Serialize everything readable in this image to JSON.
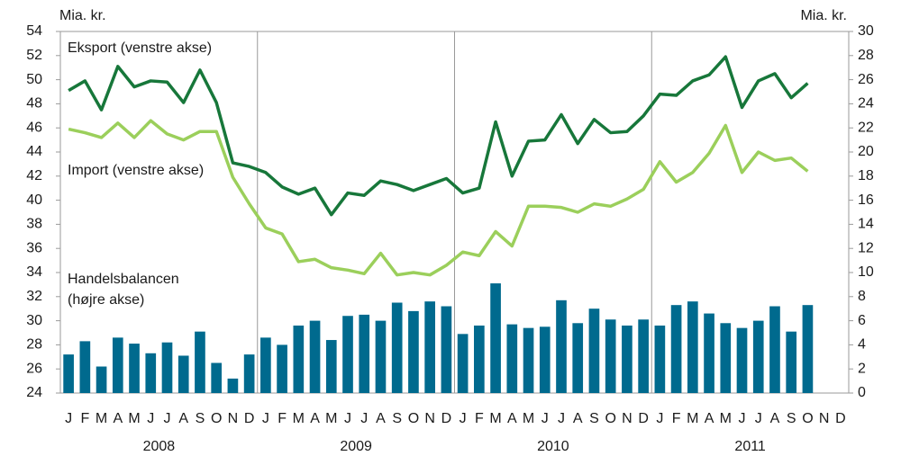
{
  "chart_data": {
    "type": "line",
    "y_label": "Mia. kr.",
    "y2_label": "Mia. kr.",
    "categories": [
      "J",
      "F",
      "M",
      "A",
      "M",
      "J",
      "J",
      "A",
      "S",
      "O",
      "N",
      "D",
      "J",
      "F",
      "M",
      "A",
      "M",
      "J",
      "J",
      "A",
      "S",
      "O",
      "N",
      "D",
      "J",
      "F",
      "M",
      "A",
      "M",
      "J",
      "J",
      "A",
      "S",
      "O",
      "N",
      "D",
      "J",
      "F",
      "M",
      "A",
      "M",
      "J",
      "J",
      "A",
      "S",
      "O",
      "N",
      "D"
    ],
    "years": [
      "2008",
      "2009",
      "2010",
      "2011"
    ],
    "ylim": [
      24,
      54
    ],
    "yticks": [
      24,
      26,
      28,
      30,
      32,
      34,
      36,
      38,
      40,
      42,
      44,
      46,
      48,
      50,
      52,
      54
    ],
    "y2lim": [
      0,
      30
    ],
    "y2ticks": [
      0,
      2,
      4,
      6,
      8,
      10,
      12,
      14,
      16,
      18,
      20,
      22,
      24,
      26,
      28,
      30
    ],
    "series": [
      {
        "name": "Eksport (venstre akse)",
        "type": "line",
        "color": "#17773a",
        "values": [
          49.1,
          49.9,
          47.5,
          51.1,
          49.4,
          49.9,
          49.8,
          48.1,
          50.8,
          48.1,
          43.1,
          42.8,
          42.3,
          41.1,
          40.5,
          41.0,
          38.8,
          40.6,
          40.4,
          41.6,
          41.3,
          40.8,
          41.3,
          41.8,
          40.6,
          41.0,
          46.5,
          42.0,
          44.9,
          45.0,
          47.1,
          44.7,
          46.7,
          45.6,
          45.7,
          47.0,
          48.8,
          48.7,
          49.9,
          50.4,
          51.9,
          47.7,
          49.9,
          50.5,
          48.5,
          49.7,
          null,
          null
        ]
      },
      {
        "name": "Import (venstre akse)",
        "type": "line",
        "color": "#9bcf5b",
        "values": [
          45.9,
          45.6,
          45.2,
          46.4,
          45.2,
          46.6,
          45.5,
          45.0,
          45.7,
          45.7,
          41.9,
          39.7,
          37.7,
          37.2,
          34.9,
          35.1,
          34.4,
          34.2,
          33.9,
          35.6,
          33.8,
          34.0,
          33.8,
          34.6,
          35.7,
          35.4,
          37.4,
          36.2,
          39.5,
          39.5,
          39.4,
          39.0,
          39.7,
          39.5,
          40.1,
          40.9,
          43.2,
          41.5,
          42.3,
          43.9,
          46.2,
          42.3,
          44.0,
          43.3,
          43.5,
          42.4,
          null,
          null
        ]
      },
      {
        "name": "Handelsbalancen",
        "type": "bar",
        "axis": "y2",
        "color": "#006a8e",
        "values": [
          3.2,
          4.3,
          2.2,
          4.6,
          4.1,
          3.3,
          4.2,
          3.1,
          5.1,
          2.5,
          1.2,
          3.2,
          4.6,
          4.0,
          5.6,
          6.0,
          4.4,
          6.4,
          6.5,
          6.0,
          7.5,
          6.8,
          7.6,
          7.2,
          4.9,
          5.6,
          9.1,
          5.7,
          5.4,
          5.5,
          7.7,
          5.8,
          7.0,
          6.1,
          5.6,
          6.1,
          5.6,
          7.3,
          7.6,
          6.6,
          5.8,
          5.4,
          6.0,
          7.2,
          5.1,
          7.3,
          null,
          null
        ]
      }
    ],
    "annotations": [
      "(højre akse)"
    ]
  }
}
